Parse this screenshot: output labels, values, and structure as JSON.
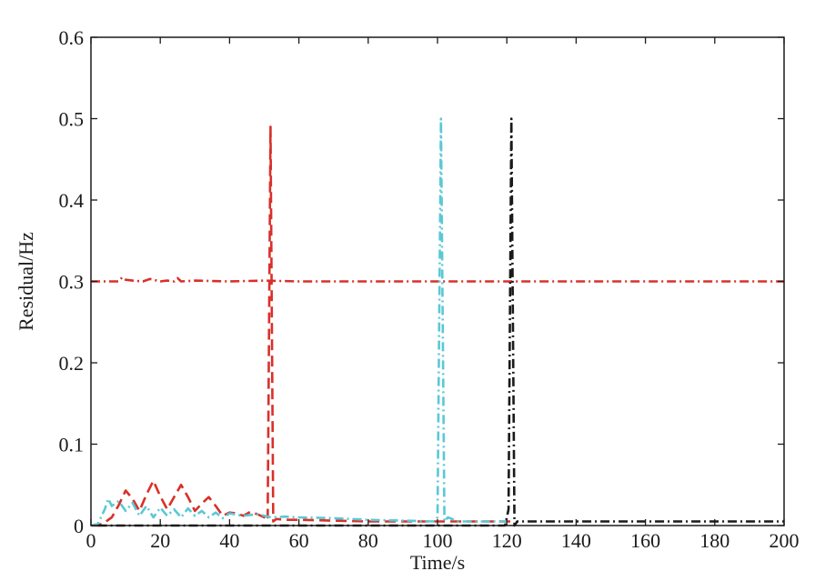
{
  "chart_data": {
    "type": "line",
    "xlabel": "Time/s",
    "ylabel": "Residual/Hz",
    "xlim": [
      0,
      200
    ],
    "ylim": [
      0,
      0.6
    ],
    "xticks": [
      0,
      20,
      40,
      60,
      80,
      100,
      120,
      140,
      160,
      180,
      200
    ],
    "yticks": [
      0,
      0.1,
      0.2,
      0.3,
      0.4,
      0.5,
      0.6
    ],
    "xtick_labels": [
      "0",
      "20",
      "40",
      "60",
      "80",
      "100",
      "120",
      "140",
      "160",
      "180",
      "200"
    ],
    "ytick_labels": [
      "0",
      "0.1",
      "0.2",
      "0.3",
      "0.4",
      "0.5",
      "0.6"
    ],
    "grid": false,
    "legend": "none",
    "series": [
      {
        "color": "#d9302a",
        "style": "dash-dot",
        "x": [
          0,
          8,
          9,
          10,
          12,
          15,
          17,
          20,
          22,
          24,
          25,
          26,
          30,
          40,
          50,
          60,
          80,
          100,
          120,
          140,
          160,
          180,
          200
        ],
        "y": [
          0.3,
          0.3,
          0.305,
          0.302,
          0.301,
          0.3,
          0.303,
          0.3,
          0.301,
          0.3,
          0.304,
          0.3,
          0.301,
          0.3,
          0.301,
          0.3,
          0.3,
          0.3,
          0.3,
          0.3,
          0.3,
          0.3,
          0.3
        ]
      },
      {
        "color": "#d9302a",
        "style": "dashed",
        "x": [
          0,
          2,
          4,
          6,
          8,
          10,
          12,
          14,
          16,
          18,
          20,
          22,
          24,
          26,
          28,
          30,
          32,
          34,
          36,
          38,
          40,
          42,
          44,
          46,
          48,
          50,
          50.5,
          51,
          51.8,
          52.6,
          53.5,
          56,
          60,
          70,
          80,
          90,
          100,
          110,
          121
        ],
        "y": [
          0,
          0.0,
          0.004,
          0.01,
          0.025,
          0.043,
          0.033,
          0.018,
          0.038,
          0.055,
          0.036,
          0.02,
          0.035,
          0.05,
          0.035,
          0.018,
          0.027,
          0.035,
          0.024,
          0.012,
          0.016,
          0.015,
          0.012,
          0.017,
          0.014,
          0.01,
          0.015,
          0.01,
          0.49,
          0.005,
          0.008,
          0.007,
          0.007,
          0.006,
          0.005,
          0.005,
          0.005,
          0.005,
          0.005
        ]
      },
      {
        "color": "#5bc8d4",
        "style": "dash-dot",
        "x": [
          0,
          2,
          4,
          5,
          6,
          8,
          10,
          12,
          14,
          16,
          18,
          20,
          22,
          24,
          26,
          28,
          30,
          32,
          34,
          36,
          38,
          40,
          44,
          48,
          52,
          56,
          60,
          70,
          80,
          90,
          99,
          100,
          101,
          102,
          103,
          106,
          120
        ],
        "y": [
          0,
          0.002,
          0.02,
          0.033,
          0.024,
          0.03,
          0.018,
          0.028,
          0.012,
          0.024,
          0.01,
          0.022,
          0.012,
          0.02,
          0.01,
          0.021,
          0.012,
          0.018,
          0.01,
          0.016,
          0.009,
          0.015,
          0.012,
          0.014,
          0.01,
          0.011,
          0.01,
          0.009,
          0.007,
          0.006,
          0.005,
          0.01,
          0.5,
          0.005,
          0.01,
          0.005,
          0.005
        ]
      },
      {
        "color": "#1a1a1a",
        "style": "dash-dot",
        "x": [
          2,
          20,
          40,
          60,
          80,
          100,
          110,
          119.5,
          120.5,
          121.3,
          122.2,
          123,
          130,
          140,
          160,
          180,
          200
        ],
        "y": [
          0,
          0,
          0,
          0,
          0,
          0,
          0,
          0,
          0.02,
          0.5,
          0.0,
          0.005,
          0.005,
          0.005,
          0.005,
          0.005,
          0.005
        ]
      }
    ]
  }
}
